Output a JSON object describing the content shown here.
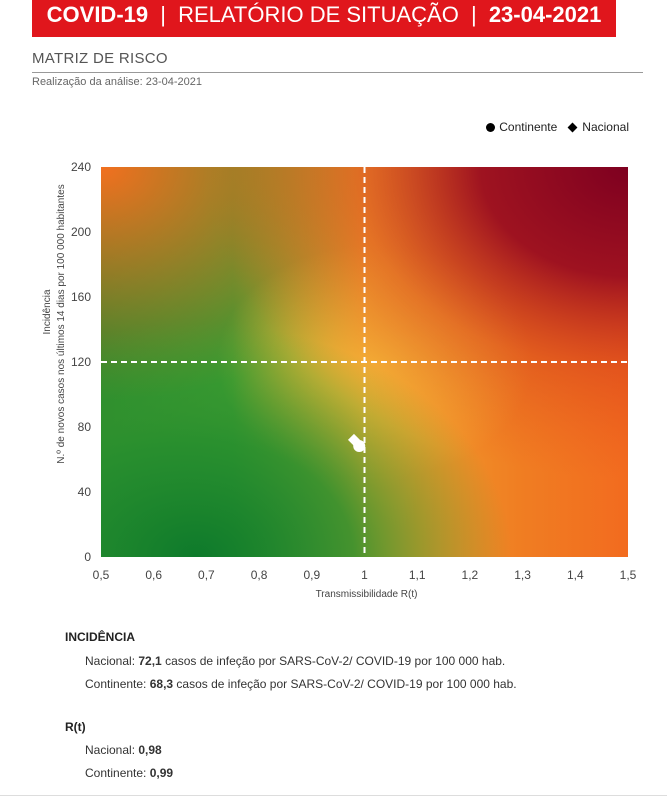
{
  "header": {
    "brand": "COVID-19",
    "separator": "|",
    "title": "RELATÓRIO DE SITUAÇÃO",
    "date": "23-04-2021"
  },
  "section": {
    "title": "MATRIZ DE RISCO",
    "subtitle": "Realização da análise: 23-04-2021"
  },
  "legend": {
    "continente": "Continente",
    "nacional": "Nacional"
  },
  "chart_data": {
    "type": "scatter",
    "xlabel": "Transmissibilidade  R(t)",
    "ylabel_line1": "Incidência",
    "ylabel_line2": "N.º de novos  casos nos últimos 14 dias por 100 000 habitantes",
    "xlim": [
      0.5,
      1.5
    ],
    "ylim": [
      0,
      240
    ],
    "x_ticks": [
      "0,5",
      "0,6",
      "0,7",
      "0,8",
      "0,9",
      "1",
      "1,1",
      "1,2",
      "1,3",
      "1,4",
      "1,5"
    ],
    "y_ticks": [
      "0",
      "40",
      "80",
      "120",
      "160",
      "200",
      "240"
    ],
    "thresholds": {
      "x": 1.0,
      "y": 120
    },
    "background": "risk gradient green (low) to dark red (high)",
    "series": [
      {
        "name": "Continente",
        "marker": "circle",
        "x": 0.99,
        "y": 68.3,
        "color": "#ffffff"
      },
      {
        "name": "Nacional",
        "marker": "diamond",
        "x": 0.98,
        "y": 72.1,
        "color": "#ffffff"
      }
    ]
  },
  "incidencia": {
    "heading": "INCIDÊNCIA",
    "nacional_label": "Nacional: ",
    "nacional_value": "72,1",
    "nacional_text": " casos de infeção por SARS-CoV-2/ COVID-19 por 100 000 hab.",
    "continente_label": "Continente: ",
    "continente_value": "68,3",
    "continente_text": " casos de infeção por SARS-CoV-2/ COVID-19 por 100 000 hab."
  },
  "rt": {
    "heading": "R(t)",
    "nacional_label": "Nacional: ",
    "nacional_value": "0,98",
    "continente_label": "Continente: ",
    "continente_value": "0,99"
  }
}
